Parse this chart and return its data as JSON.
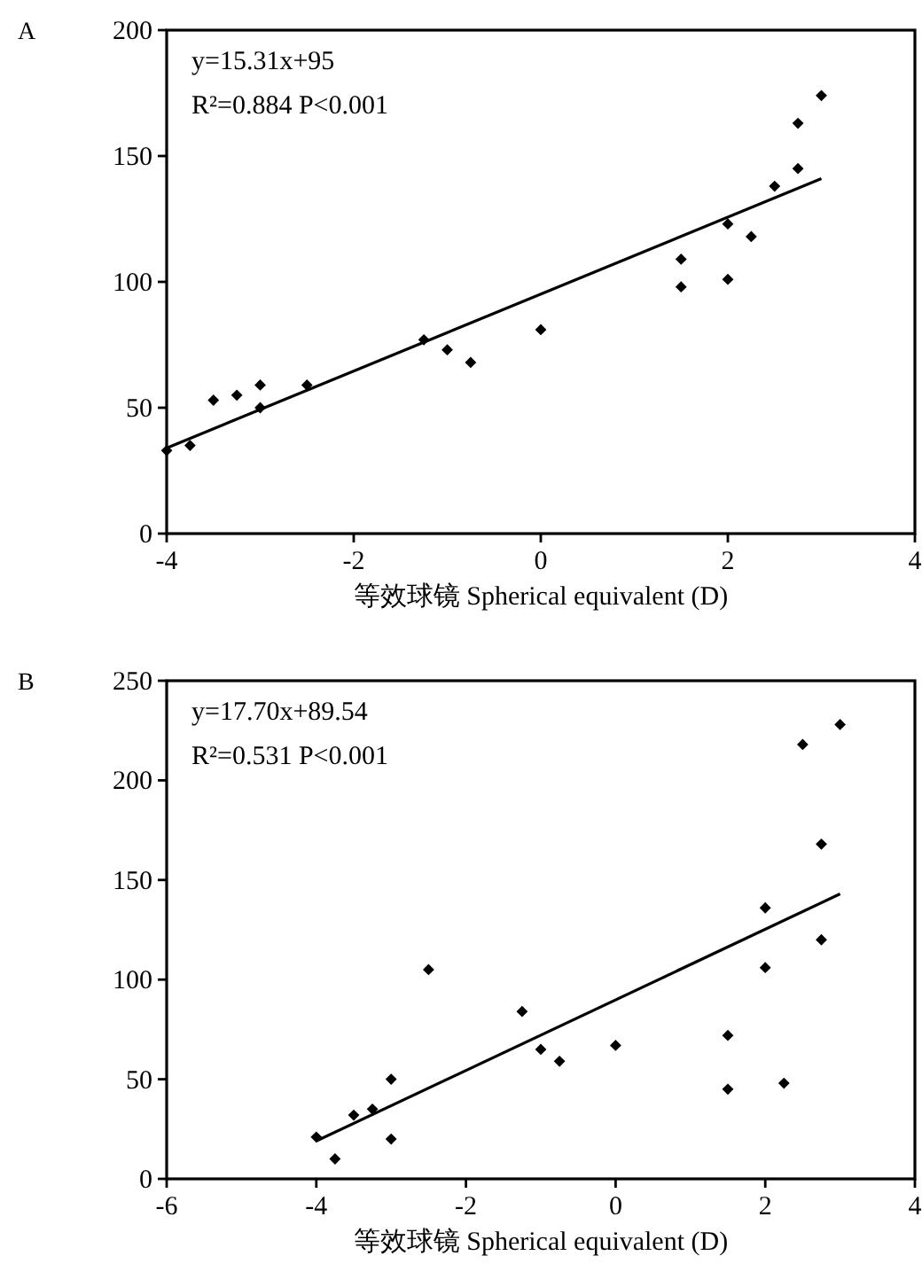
{
  "chart_data": [
    {
      "type": "scatter",
      "title": "A",
      "xlabel": "等效球镜 Spherical equivalent (D)",
      "xlim": [
        -4,
        4
      ],
      "xticks": [
        -4,
        -2,
        0,
        2,
        4
      ],
      "ylim": [
        0,
        200
      ],
      "yticks": [
        0,
        50,
        100,
        150,
        200
      ],
      "annotations": [
        "y=15.31x+95",
        "R²=0.884 P<0.001"
      ],
      "series": [
        {
          "marker": "diamond",
          "color": "#000000",
          "x": [
            -4,
            -3.75,
            -3.5,
            -3.25,
            -3,
            -3,
            -2.5,
            -1.25,
            -1,
            -0.75,
            0,
            1.5,
            1.5,
            2,
            2,
            2.25,
            2.5,
            2.75,
            2.75,
            3
          ],
          "values": [
            33,
            35,
            53,
            55,
            59,
            50,
            59,
            77,
            73,
            68,
            81,
            109,
            98,
            123,
            101,
            118,
            138,
            145,
            163,
            174
          ]
        },
        {
          "type": "line",
          "color": "#000000",
          "x": [
            -4,
            3
          ],
          "values": [
            34,
            141
          ]
        }
      ]
    },
    {
      "type": "scatter",
      "title": "B",
      "xlabel": "等效球镜 Spherical equivalent (D)",
      "xlim": [
        -6,
        4
      ],
      "xticks": [
        -6,
        -4,
        -2,
        0,
        2,
        4
      ],
      "ylim": [
        0,
        250
      ],
      "yticks": [
        0,
        50,
        100,
        150,
        200,
        250
      ],
      "annotations": [
        "y=17.70x+89.54",
        "R²=0.531 P<0.001"
      ],
      "series": [
        {
          "marker": "diamond",
          "color": "#000000",
          "x": [
            -4,
            -3.75,
            -3.5,
            -3.25,
            -3,
            -3,
            -2.5,
            -1.25,
            -1,
            -0.75,
            0,
            1.5,
            1.5,
            2,
            2,
            2.25,
            2.5,
            2.75,
            2.75,
            3
          ],
          "values": [
            21,
            10,
            32,
            35,
            50,
            20,
            105,
            84,
            65,
            59,
            67,
            72,
            45,
            136,
            106,
            48,
            218,
            168,
            120,
            228
          ]
        },
        {
          "type": "line",
          "color": "#000000",
          "x": [
            -4,
            3
          ],
          "values": [
            19,
            143
          ]
        }
      ]
    }
  ]
}
